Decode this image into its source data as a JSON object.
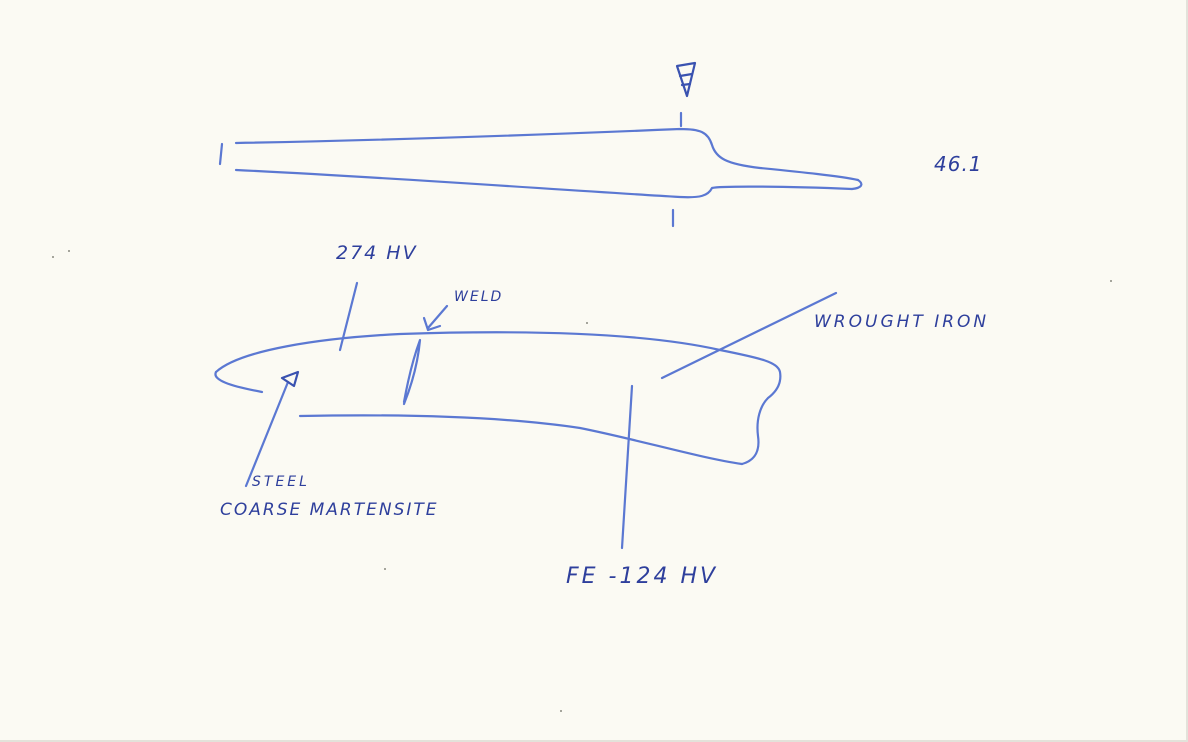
{
  "reference_number": "46.1",
  "labels": {
    "hardness_steel": "274 HV",
    "weld": "WELD",
    "wrought_iron": "WROUGHT IRON",
    "steel": "STEEL",
    "microstructure": "COARSE MARTENSITE",
    "iron_hardness": "FE -124 HV"
  },
  "ink_color": "#5b78d2"
}
